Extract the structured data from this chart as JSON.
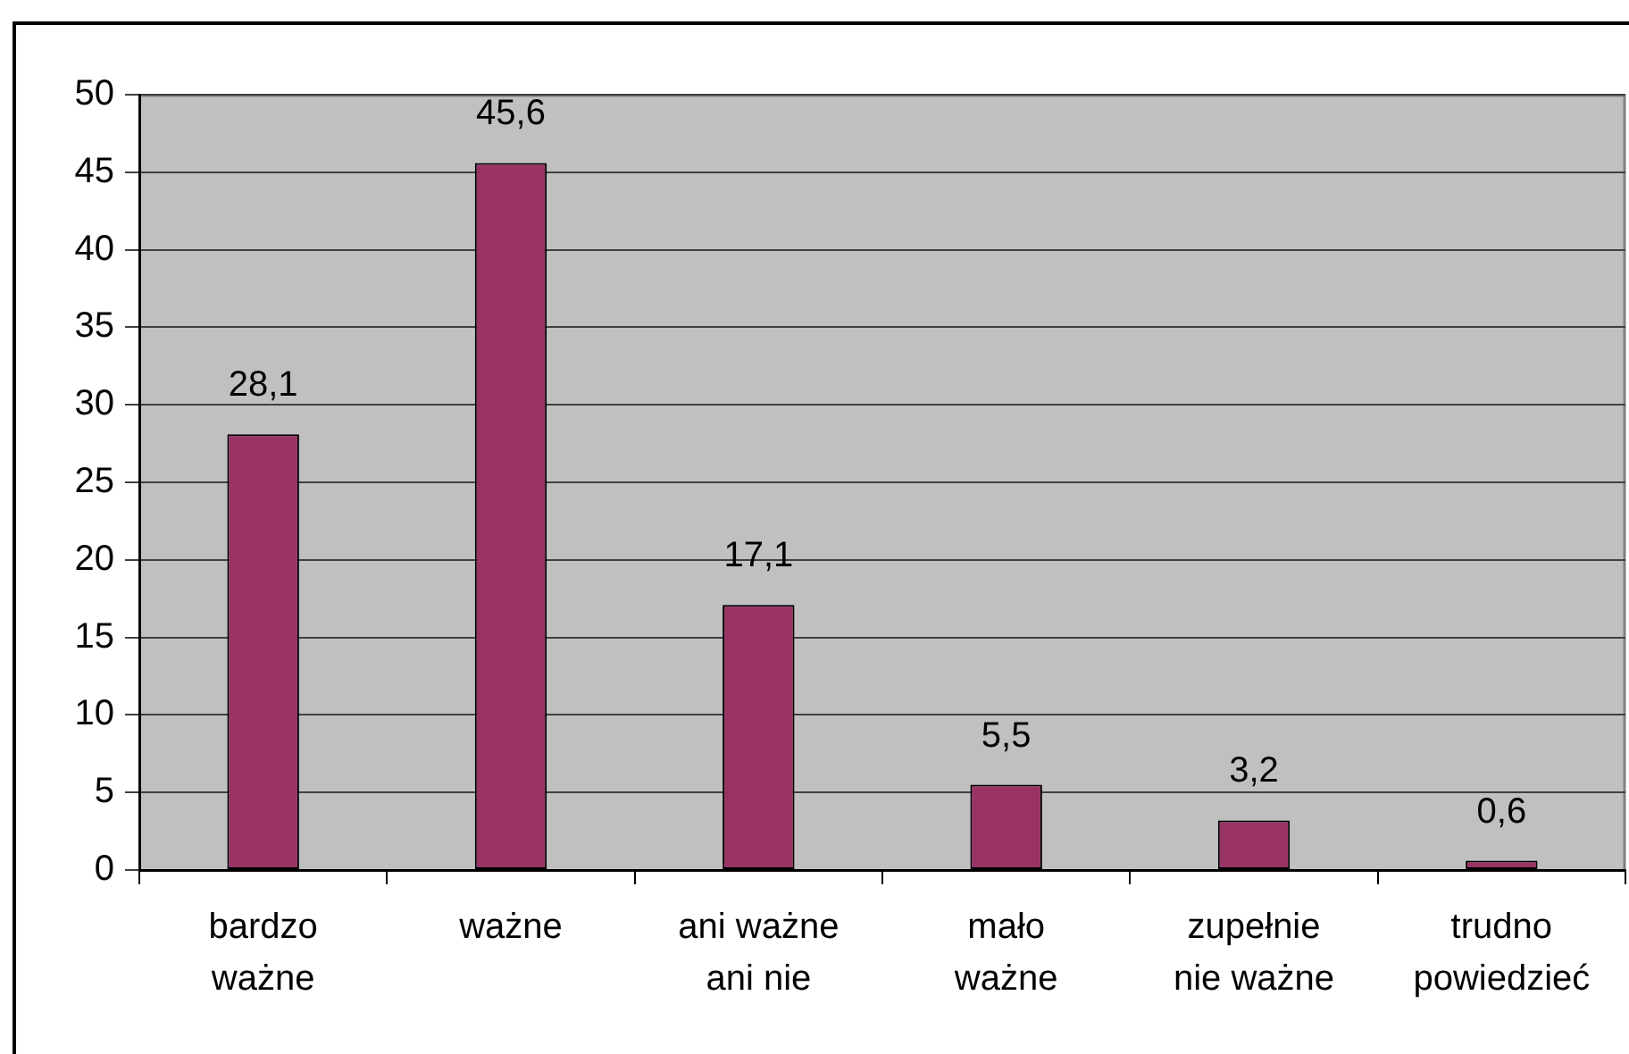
{
  "chart_data": {
    "type": "bar",
    "categories": [
      "bardzo\nważne",
      "ważne",
      "ani ważne\nani nie",
      "mało\nważne",
      "zupełnie\nnie ważne",
      "trudno\npowiedzieć"
    ],
    "values": [
      28.1,
      45.6,
      17.1,
      5.5,
      3.2,
      0.6
    ],
    "value_labels": [
      "28,1",
      "45,6",
      "17,1",
      "5,5",
      "3,2",
      "0,6"
    ],
    "color": "#993366",
    "ylim": [
      0,
      50
    ],
    "yticks": [
      0,
      5,
      10,
      15,
      20,
      25,
      30,
      35,
      40,
      45,
      50
    ],
    "grid": "y"
  }
}
